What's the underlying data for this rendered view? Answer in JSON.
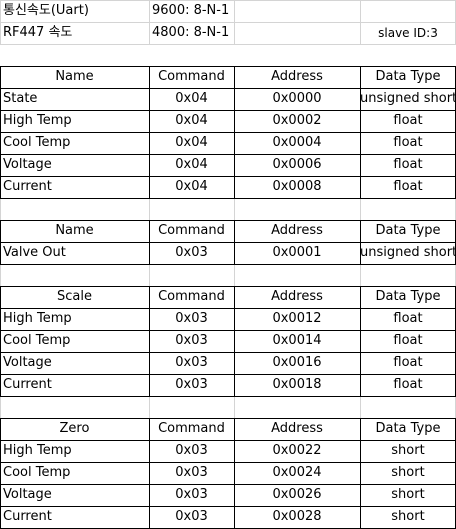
{
  "top": [
    {
      "label": "통신속도(Uart)",
      "value": "9600: 8-N-1",
      "extra": ""
    },
    {
      "label": "RF447 속도",
      "value": "4800: 8-N-1",
      "extra": "slave ID:3"
    }
  ],
  "tables": [
    {
      "header": [
        "Name",
        "Command",
        "Address",
        "Data Type"
      ],
      "rows": [
        [
          "State",
          "0x04",
          "0x0000",
          "unsigned short"
        ],
        [
          "High Temp",
          "0x04",
          "0x0002",
          "float"
        ],
        [
          "Cool Temp",
          "0x04",
          "0x0004",
          "float"
        ],
        [
          "Voltage",
          "0x04",
          "0x0006",
          "float"
        ],
        [
          "Current",
          "0x04",
          "0x0008",
          "float"
        ]
      ]
    },
    {
      "header": [
        "Name",
        "Command",
        "Address",
        "Data Type"
      ],
      "rows": [
        [
          "Valve Out",
          "0x03",
          "0x0001",
          "unsigned short"
        ]
      ]
    },
    {
      "header": [
        "Scale",
        "Command",
        "Address",
        "Data Type"
      ],
      "rows": [
        [
          "High Temp",
          "0x03",
          "0x0012",
          "float"
        ],
        [
          "Cool Temp",
          "0x03",
          "0x0014",
          "float"
        ],
        [
          "Voltage",
          "0x03",
          "0x0016",
          "float"
        ],
        [
          "Current",
          "0x03",
          "0x0018",
          "float"
        ]
      ]
    },
    {
      "header": [
        "Zero",
        "Command",
        "Address",
        "Data Type"
      ],
      "rows": [
        [
          "High Temp",
          "0x03",
          "0x0022",
          "short"
        ],
        [
          "Cool Temp",
          "0x03",
          "0x0024",
          "short"
        ],
        [
          "Voltage",
          "0x03",
          "0x0026",
          "short"
        ],
        [
          "Current",
          "0x03",
          "0x0028",
          "short"
        ]
      ]
    }
  ]
}
